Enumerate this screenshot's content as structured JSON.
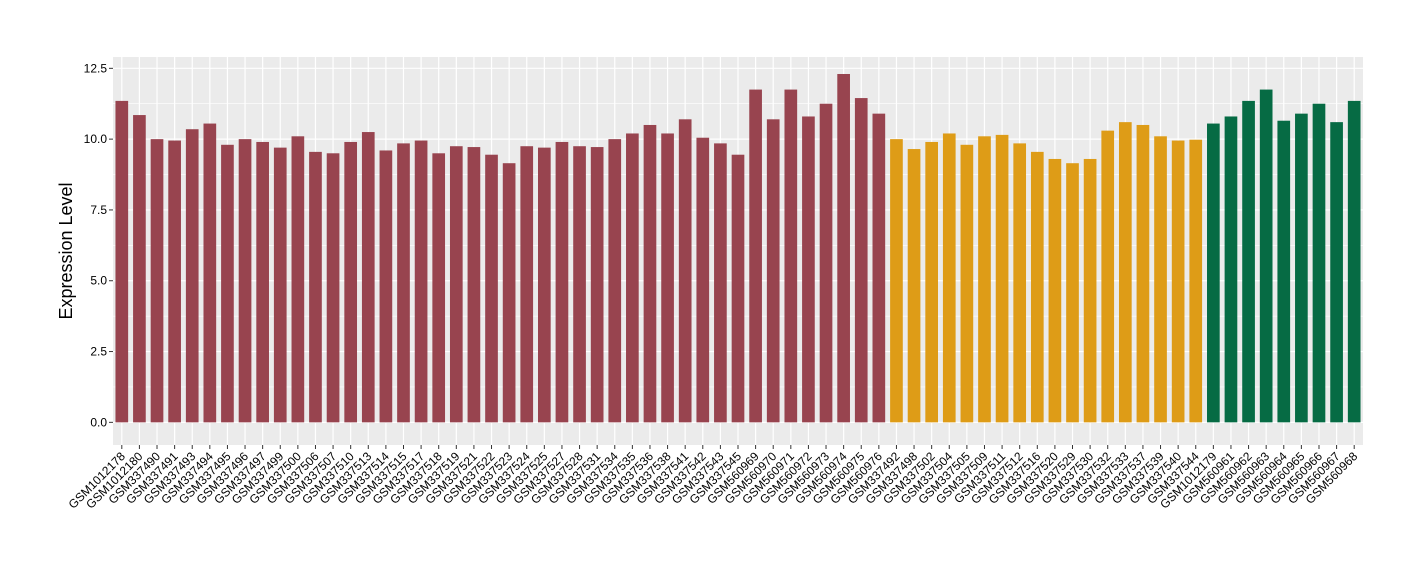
{
  "chart_data": {
    "type": "bar",
    "ylabel": "Expression Level",
    "xlabel": "",
    "ylim": [
      -0.8,
      12.9
    ],
    "yticks": [
      0,
      2.5,
      5,
      7.5,
      10,
      12.5
    ],
    "ytick_labels": [
      "0.0",
      "2.5",
      "5.0",
      "7.5",
      "10.0",
      "12.5"
    ],
    "grid": true,
    "legend": "none",
    "panel_background": "#ebebeb",
    "grid_color": "#ffffff",
    "colors": {
      "group1": "#98444f",
      "group2": "#de9c17",
      "group3": "#066b44"
    },
    "categories": [
      "GSM1012178",
      "GSM1012180",
      "GSM337490",
      "GSM337491",
      "GSM337493",
      "GSM337494",
      "GSM337495",
      "GSM337496",
      "GSM337497",
      "GSM337499",
      "GSM337500",
      "GSM337506",
      "GSM337507",
      "GSM337510",
      "GSM337513",
      "GSM337514",
      "GSM337515",
      "GSM337517",
      "GSM337518",
      "GSM337519",
      "GSM337521",
      "GSM337522",
      "GSM337523",
      "GSM337524",
      "GSM337525",
      "GSM337527",
      "GSM337528",
      "GSM337531",
      "GSM337534",
      "GSM337535",
      "GSM337536",
      "GSM337538",
      "GSM337541",
      "GSM337542",
      "GSM337543",
      "GSM337545",
      "GSM560969",
      "GSM560970",
      "GSM560971",
      "GSM560972",
      "GSM560973",
      "GSM560974",
      "GSM560975",
      "GSM560976",
      "GSM337492",
      "GSM337498",
      "GSM337502",
      "GSM337504",
      "GSM337505",
      "GSM337509",
      "GSM337511",
      "GSM337512",
      "GSM337516",
      "GSM337520",
      "GSM337529",
      "GSM337530",
      "GSM337532",
      "GSM337533",
      "GSM337537",
      "GSM337539",
      "GSM337540",
      "GSM337544",
      "GSM1012179",
      "GSM560961",
      "GSM560962",
      "GSM560963",
      "GSM560964",
      "GSM560965",
      "GSM560966",
      "GSM560967",
      "GSM560968"
    ],
    "values": [
      11.35,
      10.85,
      10.0,
      9.95,
      10.35,
      10.55,
      9.8,
      10.0,
      9.9,
      9.7,
      10.1,
      9.55,
      9.5,
      9.9,
      10.25,
      9.6,
      9.85,
      9.95,
      9.5,
      9.75,
      9.72,
      9.45,
      9.15,
      9.75,
      9.7,
      9.9,
      9.75,
      9.72,
      10.0,
      10.2,
      10.5,
      10.2,
      10.7,
      10.05,
      9.85,
      9.45,
      11.75,
      10.7,
      11.75,
      10.8,
      11.25,
      12.3,
      11.45,
      10.9,
      10.0,
      9.65,
      9.9,
      10.2,
      9.8,
      10.1,
      10.15,
      9.85,
      9.55,
      9.3,
      9.15,
      9.3,
      10.3,
      10.6,
      10.5,
      10.1,
      9.95,
      9.98,
      10.55,
      10.8,
      11.35,
      11.75,
      10.65,
      10.9,
      11.25,
      10.6,
      11.35
    ],
    "groups": [
      "group1",
      "group1",
      "group1",
      "group1",
      "group1",
      "group1",
      "group1",
      "group1",
      "group1",
      "group1",
      "group1",
      "group1",
      "group1",
      "group1",
      "group1",
      "group1",
      "group1",
      "group1",
      "group1",
      "group1",
      "group1",
      "group1",
      "group1",
      "group1",
      "group1",
      "group1",
      "group1",
      "group1",
      "group1",
      "group1",
      "group1",
      "group1",
      "group1",
      "group1",
      "group1",
      "group1",
      "group1",
      "group1",
      "group1",
      "group1",
      "group1",
      "group1",
      "group1",
      "group1",
      "group2",
      "group2",
      "group2",
      "group2",
      "group2",
      "group2",
      "group2",
      "group2",
      "group2",
      "group2",
      "group2",
      "group2",
      "group2",
      "group2",
      "group2",
      "group2",
      "group2",
      "group2",
      "group3",
      "group3",
      "group3",
      "group3",
      "group3",
      "group3",
      "group3",
      "group3",
      "group3"
    ]
  }
}
